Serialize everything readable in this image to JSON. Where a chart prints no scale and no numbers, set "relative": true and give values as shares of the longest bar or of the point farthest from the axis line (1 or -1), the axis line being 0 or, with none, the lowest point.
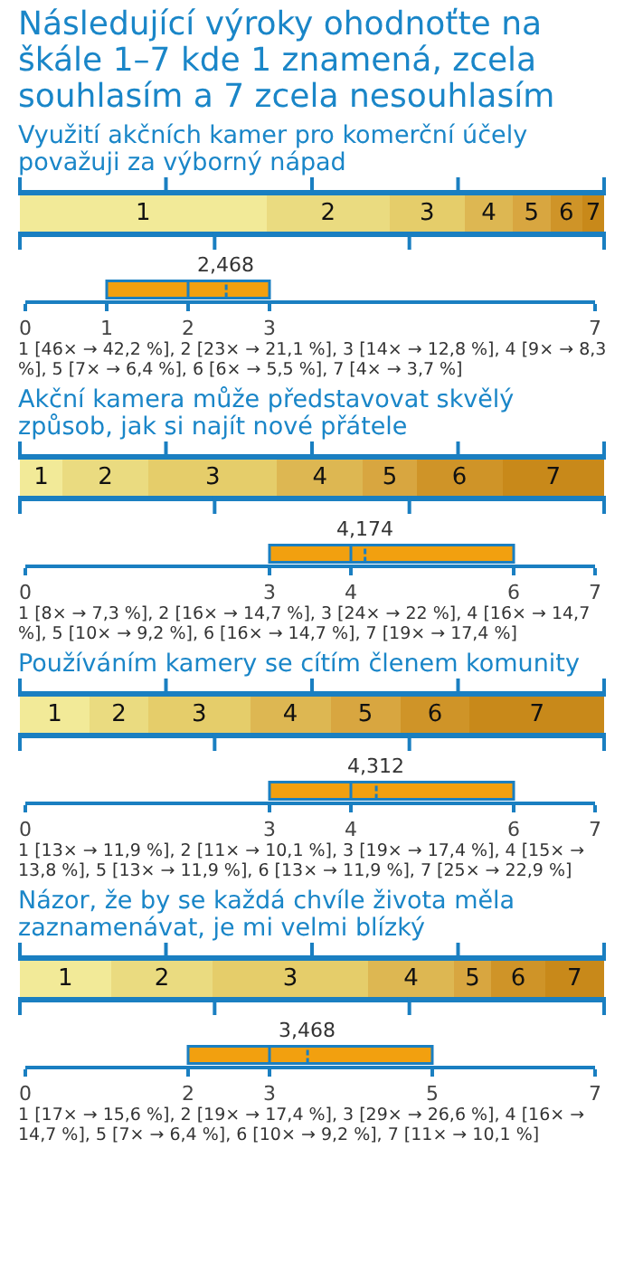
{
  "chart_data": [
    {
      "type": "bar",
      "title": "Následující výroky ohodnoťte na škále 1–7 kde 1 znamená, zcela souhlasím a 7 zcela nesouhlasím",
      "subtitle": "Využití akčních kamer pro komerční účely považuji za výborný nápad",
      "categories": [
        null
      ],
      "orientation": "horizontal",
      "stacked": true,
      "relative": true,
      "tick_labels": false,
      "series": [
        {
          "name": "1",
          "color": "#f2ea98",
          "values": [
            0.422
          ]
        },
        {
          "name": "2",
          "color": "#eadb80",
          "values": [
            0.211
          ]
        },
        {
          "name": "3",
          "color": "#e5cd6a",
          "values": [
            0.128
          ]
        },
        {
          "name": "4",
          "color": "#ddb752",
          "values": [
            0.083
          ]
        },
        {
          "name": "5",
          "color": "#d8a640",
          "values": [
            0.064
          ]
        },
        {
          "name": "6",
          "color": "#cf9428",
          "values": [
            0.055
          ]
        },
        {
          "name": "7",
          "color": "#c8891a",
          "values": [
            0.037
          ]
        }
      ]
    },
    {
      "type": "box",
      "orientation": "horizontal",
      "categories": [
        null
      ],
      "color": "#f2a00f",
      "xlim": [
        0,
        7
      ],
      "xticks": [
        0,
        1,
        2,
        3,
        7
      ],
      "tick_labels": "x",
      "boxes": [
        {
          "low": 1,
          "q1": 1,
          "median": 2,
          "q3": 3,
          "high": 3,
          "mean": 2.468
        }
      ],
      "annotations": [
        "2,468",
        "1 [46× → 42,2 %], 2 [23× → 21,1 %], 3 [14× → 12,8 %], 4 [9× → 8,3 %], 5 [7× → 6,4 %], 6 [6× → 5,5 %], 7 [4× → 3,7 %]"
      ]
    },
    {
      "type": "bar",
      "subtitle": "Akční kamera může představovat skvělý způsob, jak si najít nové přátele",
      "categories": [
        null
      ],
      "orientation": "horizontal",
      "stacked": true,
      "relative": true,
      "tick_labels": false,
      "series": [
        {
          "name": "1",
          "color": "#f2ea98",
          "values": [
            0.073
          ]
        },
        {
          "name": "2",
          "color": "#eadb80",
          "values": [
            0.147
          ]
        },
        {
          "name": "3",
          "color": "#e5cd6a",
          "values": [
            0.22
          ]
        },
        {
          "name": "4",
          "color": "#ddb752",
          "values": [
            0.147
          ]
        },
        {
          "name": "5",
          "color": "#d8a640",
          "values": [
            0.092
          ]
        },
        {
          "name": "6",
          "color": "#cf9428",
          "values": [
            0.147
          ]
        },
        {
          "name": "7",
          "color": "#c8891a",
          "values": [
            0.174
          ]
        }
      ]
    },
    {
      "type": "box",
      "orientation": "horizontal",
      "categories": [
        null
      ],
      "color": "#f2a00f",
      "xlim": [
        0,
        7
      ],
      "xticks": [
        0,
        3,
        4,
        6,
        7
      ],
      "tick_labels": "x",
      "boxes": [
        {
          "low": 3,
          "q1": 3,
          "median": 4,
          "q3": 6,
          "high": 6,
          "mean": 4.174
        }
      ],
      "annotations": [
        "4,174",
        "1 [8× → 7,3 %], 2 [16× → 14,7 %], 3 [24× → 22 %], 4 [16× → 14,7 %], 5 [10× → 9,2 %], 6 [16× → 14,7 %], 7 [19× → 17,4 %]"
      ]
    },
    {
      "type": "bar",
      "subtitle": "Používáním kamery se cítím členem komunity",
      "categories": [
        null
      ],
      "orientation": "horizontal",
      "stacked": true,
      "relative": true,
      "tick_labels": false,
      "series": [
        {
          "name": "1",
          "color": "#f2ea98",
          "values": [
            0.119
          ]
        },
        {
          "name": "2",
          "color": "#eadb80",
          "values": [
            0.101
          ]
        },
        {
          "name": "3",
          "color": "#e5cd6a",
          "values": [
            0.174
          ]
        },
        {
          "name": "4",
          "color": "#ddb752",
          "values": [
            0.138
          ]
        },
        {
          "name": "5",
          "color": "#d8a640",
          "values": [
            0.119
          ]
        },
        {
          "name": "6",
          "color": "#cf9428",
          "values": [
            0.119
          ]
        },
        {
          "name": "7",
          "color": "#c8891a",
          "values": [
            0.23
          ]
        }
      ]
    },
    {
      "type": "box",
      "orientation": "horizontal",
      "categories": [
        null
      ],
      "color": "#f2a00f",
      "xlim": [
        0,
        7
      ],
      "xticks": [
        0,
        3,
        4,
        6,
        7
      ],
      "tick_labels": "x",
      "boxes": [
        {
          "low": 3,
          "q1": 3,
          "median": 4,
          "q3": 6,
          "high": 6,
          "mean": 4.312
        }
      ],
      "annotations": [
        "4,312",
        "1 [13× → 11,9 %], 2 [11× → 10,1 %], 3 [19× → 17,4 %], 4 [15× → 13,8 %], 5 [13× → 11,9 %], 6 [13× → 11,9 %], 7 [25× → 22,9 %]"
      ]
    },
    {
      "type": "bar",
      "subtitle": "Názor, že by se každá chvíle života měla zaznamenávat, je mi velmi blízký",
      "categories": [
        null
      ],
      "orientation": "horizontal",
      "stacked": true,
      "relative": true,
      "tick_labels": false,
      "series": [
        {
          "name": "1",
          "color": "#f2ea98",
          "values": [
            0.156
          ]
        },
        {
          "name": "2",
          "color": "#eadb80",
          "values": [
            0.174
          ]
        },
        {
          "name": "3",
          "color": "#e5cd6a",
          "values": [
            0.266
          ]
        },
        {
          "name": "4",
          "color": "#ddb752",
          "values": [
            0.147
          ]
        },
        {
          "name": "5",
          "color": "#d8a640",
          "values": [
            0.064
          ]
        },
        {
          "name": "6",
          "color": "#cf9428",
          "values": [
            0.092
          ]
        },
        {
          "name": "7",
          "color": "#c8891a",
          "values": [
            0.101
          ]
        }
      ]
    },
    {
      "type": "box",
      "orientation": "horizontal",
      "categories": [
        null
      ],
      "color": "#f2a00f",
      "xlim": [
        0,
        7
      ],
      "xticks": [
        0,
        2,
        3,
        5,
        7
      ],
      "tick_labels": "x",
      "boxes": [
        {
          "low": 2,
          "q1": 2,
          "median": 3,
          "q3": 5,
          "high": 5,
          "mean": 3.468
        }
      ],
      "annotations": [
        "3,468",
        "1 [17× → 15,6 %], 2 [19× → 17,4 %], 3 [29× → 26,6 %], 4 [16× → 14,7 %], 5 [7× → 6,4 %], 6 [10× → 9,2 %], 7 [11× → 10,1 %]"
      ]
    }
  ]
}
